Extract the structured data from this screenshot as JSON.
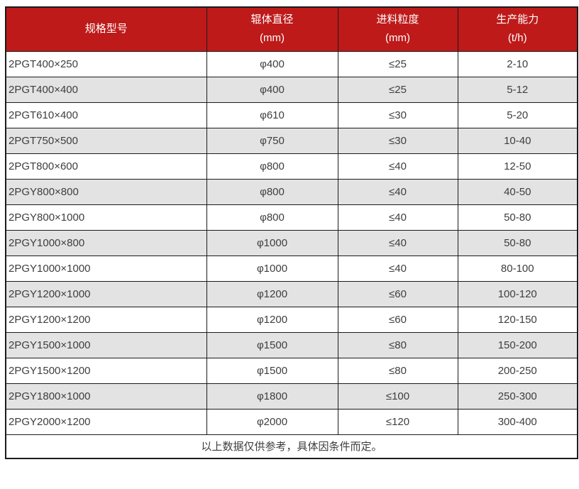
{
  "table": {
    "headers": [
      {
        "title": "规格型号",
        "unit": ""
      },
      {
        "title": "辊体直径",
        "unit": "(mm)"
      },
      {
        "title": "进料粒度",
        "unit": "(mm)"
      },
      {
        "title": "生产能力",
        "unit": "(t/h)"
      }
    ],
    "rows": [
      {
        "model": "2PGT400×250",
        "roller_diameter": "φ400",
        "feed_size": "≤25",
        "capacity": "2-10"
      },
      {
        "model": "2PGT400×400",
        "roller_diameter": "φ400",
        "feed_size": "≤25",
        "capacity": "5-12"
      },
      {
        "model": "2PGT610×400",
        "roller_diameter": "φ610",
        "feed_size": "≤30",
        "capacity": "5-20"
      },
      {
        "model": "2PGT750×500",
        "roller_diameter": "φ750",
        "feed_size": "≤30",
        "capacity": "10-40"
      },
      {
        "model": "2PGT800×600",
        "roller_diameter": "φ800",
        "feed_size": "≤40",
        "capacity": "12-50"
      },
      {
        "model": "2PGY800×800",
        "roller_diameter": "φ800",
        "feed_size": "≤40",
        "capacity": "40-50"
      },
      {
        "model": "2PGY800×1000",
        "roller_diameter": "φ800",
        "feed_size": "≤40",
        "capacity": "50-80"
      },
      {
        "model": "2PGY1000×800",
        "roller_diameter": "φ1000",
        "feed_size": "≤40",
        "capacity": "50-80"
      },
      {
        "model": "2PGY1000×1000",
        "roller_diameter": "φ1000",
        "feed_size": "≤40",
        "capacity": "80-100"
      },
      {
        "model": "2PGY1200×1000",
        "roller_diameter": "φ1200",
        "feed_size": "≤60",
        "capacity": "100-120"
      },
      {
        "model": "2PGY1200×1200",
        "roller_diameter": "φ1200",
        "feed_size": "≤60",
        "capacity": "120-150"
      },
      {
        "model": "2PGY1500×1000",
        "roller_diameter": "φ1500",
        "feed_size": "≤80",
        "capacity": "150-200"
      },
      {
        "model": "2PGY1500×1200",
        "roller_diameter": "φ1500",
        "feed_size": "≤80",
        "capacity": "200-250"
      },
      {
        "model": "2PGY1800×1000",
        "roller_diameter": "φ1800",
        "feed_size": "≤100",
        "capacity": "250-300"
      },
      {
        "model": "2PGY2000×1200",
        "roller_diameter": "φ2000",
        "feed_size": "≤120",
        "capacity": "300-400"
      }
    ],
    "footnote": "以上数据仅供参考，具体因条件而定。"
  },
  "colors": {
    "header_bg": "#be1a1a",
    "header_text": "#ffffff",
    "row_bg": "#ffffff",
    "row_alt_bg": "#e3e3e3",
    "border": "#1b1b1b",
    "body_text": "#3e3e3e"
  }
}
